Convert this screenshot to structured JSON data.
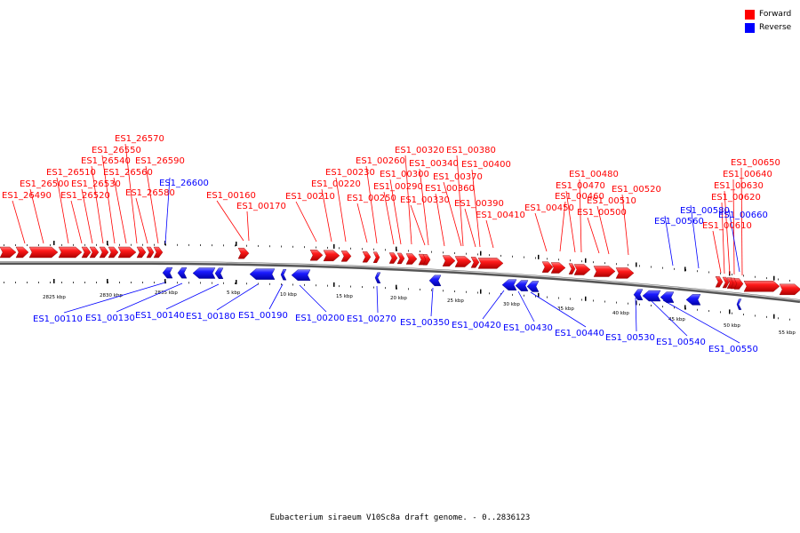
{
  "caption": "Eubacterium siraeum V10Sc8a draft genome. - 0..2836123",
  "legend": {
    "items": [
      {
        "label": "Forward",
        "color": "#ff0000"
      },
      {
        "label": "Reverse",
        "color": "#0000ff"
      }
    ]
  },
  "scale_labels": [
    "2825 kbp",
    "2830 kbp",
    "2835 kbp",
    "5 kbp",
    "10 kbp",
    "15 kbp",
    "20 kbp",
    "25 kbp",
    "30 kbp",
    "35 kbp",
    "40 kbp",
    "45 kbp",
    "50 kbp",
    "55 kbp"
  ],
  "forward_genes": [
    "ES1_26490",
    "ES1_26500",
    "ES1_26510",
    "ES1_26520",
    "ES1_26530",
    "ES1_26540",
    "ES1_26550",
    "ES1_26560",
    "ES1_26570",
    "ES1_26580",
    "ES1_26590",
    "ES1_00160",
    "ES1_00170",
    "ES1_00210",
    "ES1_00220",
    "ES1_00230",
    "ES1_00250",
    "ES1_00260",
    "ES1_00290",
    "ES1_00300",
    "ES1_00320",
    "ES1_00330",
    "ES1_00340",
    "ES1_00360",
    "ES1_00370",
    "ES1_00380",
    "ES1_00390",
    "ES1_00400",
    "ES1_00410",
    "ES1_00450",
    "ES1_00460",
    "ES1_00470",
    "ES1_00480",
    "ES1_00500",
    "ES1_00510",
    "ES1_00520",
    "ES1_00610",
    "ES1_00620",
    "ES1_00630",
    "ES1_00640",
    "ES1_00650"
  ],
  "reverse_genes_top": [
    "ES1_26600",
    "ES1_00560",
    "ES1_00580",
    "ES1_00660"
  ],
  "reverse_genes_bottom": [
    "ES1_00110",
    "ES1_00130",
    "ES1_00140",
    "ES1_00180",
    "ES1_00190",
    "ES1_00200",
    "ES1_00270",
    "ES1_00350",
    "ES1_00420",
    "ES1_00430",
    "ES1_00440",
    "ES1_00530",
    "ES1_00540",
    "ES1_00550"
  ]
}
